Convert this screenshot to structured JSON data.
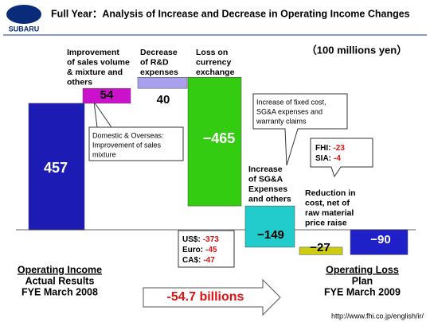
{
  "header": {
    "logo": "SUBARU",
    "title": "Full Year：Analysis of Increase and Decrease in Operating Income Changes"
  },
  "chart_data": {
    "type": "waterfall",
    "unit": "（100 millions yen）",
    "categories": [
      [
        "Operating Income",
        "Actual Results",
        "FYE March 2008"
      ],
      [
        "Improvement",
        "of sales volume",
        "& mixture and",
        "others"
      ],
      [
        "Decrease",
        "of R&D",
        "expenses"
      ],
      [
        "Loss on",
        "currency",
        "exchange"
      ],
      [
        "Increase",
        "of SG&A",
        "Expenses",
        "and others"
      ],
      [
        "Reduction in",
        "cost, net of",
        "raw material",
        "price raise"
      ],
      [
        "Operating Loss",
        "Plan",
        "FYE March 2009"
      ]
    ],
    "values": [
      457,
      54,
      40,
      -465,
      -149,
      -27,
      -90
    ],
    "value_labels": [
      "457",
      "54",
      "40",
      "−465",
      "−149",
      "−27",
      "−90"
    ],
    "colors": [
      "#1c1cb4",
      "#cc11cc",
      "#a9a0ee",
      "#33cc11",
      "#22cccc",
      "#cccc11",
      "#2020c8"
    ],
    "annotations": [
      [
        "Domestic & Overseas:",
        "Improvement of sales",
        "mixture"
      ],
      [
        "Increase of fixed cost,",
        "SG&A expenses and",
        "warranty claims"
      ]
    ],
    "breakdowns": [
      [
        {
          "label": "US$:",
          "value": -373
        },
        {
          "label": "Euro:",
          "value": -45
        },
        {
          "label": "CA$:",
          "value": -47
        }
      ],
      [
        {
          "label": "FHI:",
          "value": -23
        },
        {
          "label": "SIA:",
          "value": -4
        }
      ]
    ],
    "change": "-54.7 billions"
  },
  "footer": {
    "url": "http://www.fhi.co.jp/english/ir/"
  }
}
